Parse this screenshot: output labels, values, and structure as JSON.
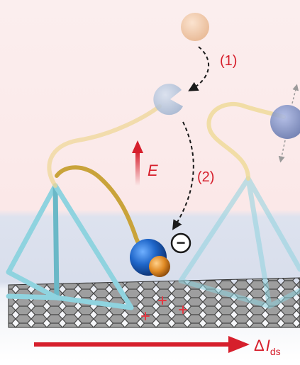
{
  "labels": {
    "step1": "(1)",
    "step2": "(2)",
    "field": "E",
    "charge_sign": "−",
    "current_delta": "Δ",
    "current_var": "I",
    "current_sub": "ds"
  },
  "colors": {
    "accent_red": "#d61f2c",
    "frame_tube": "#8fd3df",
    "linker_gold": "#c9a33a",
    "receptor_blue": "#1f66c9",
    "ligand_orange": "#e08a24",
    "graphene_grey": "#5a5a5a"
  },
  "icons": {
    "free_ligand": "orange-sphere-icon",
    "free_receptor": "pacman-receptor-icon",
    "bound_complex": "receptor-ligand-complex-icon",
    "negative_charge": "minus-circle-icon",
    "hole_charge": "plus-icon"
  }
}
